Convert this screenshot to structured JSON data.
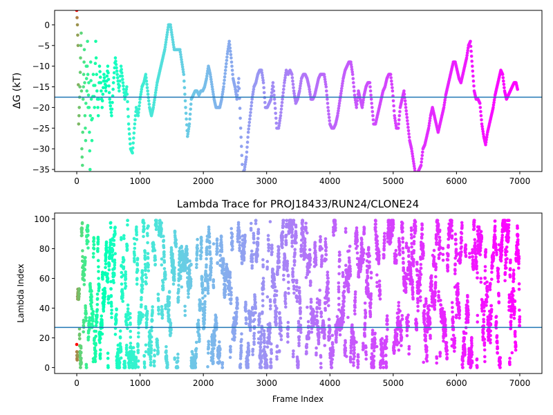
{
  "chart_data": [
    {
      "type": "scatter",
      "title": "",
      "xlabel": "",
      "ylabel": "ΔG (kT)",
      "xlim": [
        -350,
        7350
      ],
      "ylim": [
        -35.5,
        3.5
      ],
      "xticks": [
        0,
        1000,
        2000,
        3000,
        4000,
        5000,
        6000,
        7000
      ],
      "yticks": [
        0,
        -5,
        -10,
        -15,
        -20,
        -25,
        -30,
        -35
      ],
      "hline": -17.5,
      "hline_color": "#1f77b4",
      "colormap": "rainbow (frame index: red at start → violet at end)",
      "points": [
        [
          0,
          3.5
        ],
        [
          10,
          0
        ],
        [
          20,
          -5
        ],
        [
          30,
          -24
        ],
        [
          40,
          -20
        ],
        [
          50,
          -15
        ],
        [
          60,
          -8
        ],
        [
          70,
          -2
        ],
        [
          80,
          -30
        ],
        [
          90,
          -34
        ],
        [
          100,
          -18
        ],
        [
          110,
          -12
        ],
        [
          120,
          -6
        ],
        [
          130,
          -22
        ],
        [
          140,
          -28
        ],
        [
          150,
          -10
        ],
        [
          160,
          -16
        ],
        [
          170,
          -4
        ],
        [
          180,
          -20
        ],
        [
          190,
          -14
        ],
        [
          200,
          -26
        ],
        [
          210,
          -35
        ],
        [
          220,
          -9
        ],
        [
          230,
          -18
        ],
        [
          240,
          -28
        ],
        [
          260,
          -12
        ],
        [
          280,
          -20
        ],
        [
          300,
          -4
        ],
        [
          320,
          -16
        ],
        [
          340,
          -22
        ],
        [
          360,
          -10
        ],
        [
          380,
          -14
        ],
        [
          400,
          -20
        ],
        [
          430,
          -12
        ],
        [
          460,
          -16
        ],
        [
          490,
          -10
        ],
        [
          520,
          -18
        ],
        [
          550,
          -22
        ],
        [
          580,
          -14
        ],
        [
          610,
          -8
        ],
        [
          640,
          -12
        ],
        [
          670,
          -16
        ],
        [
          700,
          -10
        ],
        [
          730,
          -14
        ],
        [
          760,
          -18
        ],
        [
          790,
          -15
        ],
        [
          820,
          -24
        ],
        [
          850,
          -30
        ],
        [
          880,
          -31
        ],
        [
          910,
          -25
        ],
        [
          940,
          -20
        ],
        [
          970,
          -22
        ],
        [
          1000,
          -18
        ],
        [
          1030,
          -15
        ],
        [
          1060,
          -14
        ],
        [
          1090,
          -12
        ],
        [
          1120,
          -16
        ],
        [
          1150,
          -20
        ],
        [
          1180,
          -22
        ],
        [
          1210,
          -20
        ],
        [
          1240,
          -17
        ],
        [
          1270,
          -14
        ],
        [
          1300,
          -12
        ],
        [
          1330,
          -10
        ],
        [
          1360,
          -8
        ],
        [
          1390,
          -6
        ],
        [
          1420,
          -3
        ],
        [
          1450,
          0
        ],
        [
          1480,
          0
        ],
        [
          1510,
          -3
        ],
        [
          1540,
          -6
        ],
        [
          1570,
          -6
        ],
        [
          1600,
          -6
        ],
        [
          1630,
          -6
        ],
        [
          1660,
          -9
        ],
        [
          1690,
          -12
        ],
        [
          1720,
          -20
        ],
        [
          1750,
          -27
        ],
        [
          1780,
          -24
        ],
        [
          1810,
          -18
        ],
        [
          1840,
          -17
        ],
        [
          1870,
          -16
        ],
        [
          1900,
          -16
        ],
        [
          1930,
          -17
        ],
        [
          1960,
          -16
        ],
        [
          1990,
          -16
        ],
        [
          2020,
          -15
        ],
        [
          2050,
          -13
        ],
        [
          2080,
          -10
        ],
        [
          2110,
          -12
        ],
        [
          2140,
          -15
        ],
        [
          2170,
          -18
        ],
        [
          2200,
          -20
        ],
        [
          2230,
          -20
        ],
        [
          2260,
          -20
        ],
        [
          2290,
          -18
        ],
        [
          2320,
          -15
        ],
        [
          2350,
          -11
        ],
        [
          2380,
          -7
        ],
        [
          2410,
          -4
        ],
        [
          2440,
          -8
        ],
        [
          2470,
          -13
        ],
        [
          2500,
          -15
        ],
        [
          2530,
          -18
        ],
        [
          2560,
          -13
        ],
        [
          2590,
          -25
        ],
        [
          2620,
          -36
        ],
        [
          2650,
          -35
        ],
        [
          2680,
          -32
        ],
        [
          2710,
          -26
        ],
        [
          2740,
          -22
        ],
        [
          2770,
          -18
        ],
        [
          2800,
          -15
        ],
        [
          2830,
          -14
        ],
        [
          2860,
          -12
        ],
        [
          2890,
          -11
        ],
        [
          2920,
          -11
        ],
        [
          2950,
          -14
        ],
        [
          2980,
          -20
        ],
        [
          3010,
          -20
        ],
        [
          3040,
          -19
        ],
        [
          3070,
          -18
        ],
        [
          3100,
          -14
        ],
        [
          3130,
          -19
        ],
        [
          3160,
          -25
        ],
        [
          3190,
          -25
        ],
        [
          3220,
          -22
        ],
        [
          3250,
          -18
        ],
        [
          3280,
          -14
        ],
        [
          3310,
          -11
        ],
        [
          3340,
          -12
        ],
        [
          3370,
          -11
        ],
        [
          3400,
          -12
        ],
        [
          3430,
          -16
        ],
        [
          3460,
          -19
        ],
        [
          3490,
          -18
        ],
        [
          3520,
          -16
        ],
        [
          3550,
          -13
        ],
        [
          3580,
          -12
        ],
        [
          3610,
          -12
        ],
        [
          3640,
          -13
        ],
        [
          3670,
          -15
        ],
        [
          3700,
          -18
        ],
        [
          3730,
          -18
        ],
        [
          3760,
          -17
        ],
        [
          3790,
          -15
        ],
        [
          3820,
          -13
        ],
        [
          3850,
          -12
        ],
        [
          3880,
          -12
        ],
        [
          3910,
          -12
        ],
        [
          3940,
          -15
        ],
        [
          3970,
          -20
        ],
        [
          4000,
          -24
        ],
        [
          4030,
          -25
        ],
        [
          4060,
          -25
        ],
        [
          4090,
          -24
        ],
        [
          4120,
          -22
        ],
        [
          4150,
          -19
        ],
        [
          4180,
          -16
        ],
        [
          4210,
          -13
        ],
        [
          4240,
          -11
        ],
        [
          4270,
          -10
        ],
        [
          4300,
          -9
        ],
        [
          4330,
          -9
        ],
        [
          4360,
          -12
        ],
        [
          4390,
          -17
        ],
        [
          4420,
          -20
        ],
        [
          4450,
          -16
        ],
        [
          4480,
          -18
        ],
        [
          4510,
          -20
        ],
        [
          4540,
          -17
        ],
        [
          4570,
          -15
        ],
        [
          4600,
          -14
        ],
        [
          4630,
          -14
        ],
        [
          4660,
          -19
        ],
        [
          4690,
          -24
        ],
        [
          4720,
          -24
        ],
        [
          4750,
          -22
        ],
        [
          4780,
          -20
        ],
        [
          4810,
          -18
        ],
        [
          4840,
          -16
        ],
        [
          4870,
          -15
        ],
        [
          4900,
          -13
        ],
        [
          4930,
          -12
        ],
        [
          4960,
          -12
        ],
        [
          4990,
          -16
        ],
        [
          5020,
          -22
        ],
        [
          5050,
          -25
        ],
        [
          5080,
          -25
        ],
        [
          5110,
          -20
        ],
        [
          5140,
          -18
        ],
        [
          5170,
          -16
        ],
        [
          5200,
          -20
        ],
        [
          5230,
          -24
        ],
        [
          5260,
          -28
        ],
        [
          5290,
          -30
        ],
        [
          5320,
          -33
        ],
        [
          5350,
          -36
        ],
        [
          5380,
          -36
        ],
        [
          5410,
          -35
        ],
        [
          5440,
          -34
        ],
        [
          5470,
          -30
        ],
        [
          5500,
          -29
        ],
        [
          5530,
          -27
        ],
        [
          5560,
          -25
        ],
        [
          5590,
          -22
        ],
        [
          5620,
          -20
        ],
        [
          5650,
          -22
        ],
        [
          5680,
          -24
        ],
        [
          5710,
          -26
        ],
        [
          5740,
          -24
        ],
        [
          5770,
          -22
        ],
        [
          5800,
          -20
        ],
        [
          5830,
          -17
        ],
        [
          5860,
          -15
        ],
        [
          5890,
          -13
        ],
        [
          5920,
          -11
        ],
        [
          5950,
          -9
        ],
        [
          5980,
          -9
        ],
        [
          6010,
          -11
        ],
        [
          6040,
          -13
        ],
        [
          6070,
          -14
        ],
        [
          6100,
          -12
        ],
        [
          6130,
          -10
        ],
        [
          6160,
          -8
        ],
        [
          6190,
          -5
        ],
        [
          6220,
          -4
        ],
        [
          6250,
          -10
        ],
        [
          6280,
          -16
        ],
        [
          6310,
          -18
        ],
        [
          6340,
          -18
        ],
        [
          6370,
          -19
        ],
        [
          6400,
          -24
        ],
        [
          6430,
          -27
        ],
        [
          6460,
          -29
        ],
        [
          6490,
          -26
        ],
        [
          6520,
          -24
        ],
        [
          6550,
          -22
        ],
        [
          6580,
          -20
        ],
        [
          6610,
          -17
        ],
        [
          6640,
          -15
        ],
        [
          6670,
          -13
        ],
        [
          6700,
          -11
        ],
        [
          6730,
          -12
        ],
        [
          6760,
          -16
        ],
        [
          6790,
          -18
        ],
        [
          6820,
          -17
        ],
        [
          6850,
          -16
        ],
        [
          6880,
          -15
        ],
        [
          6910,
          -14
        ],
        [
          6940,
          -14
        ],
        [
          6970,
          -16
        ]
      ]
    },
    {
      "type": "scatter",
      "title": "Lambda Trace for PROJ18433/RUN24/CLONE24",
      "xlabel": "Frame Index",
      "ylabel": "Lambda Index",
      "xlim": [
        -350,
        7350
      ],
      "ylim": [
        -4,
        104
      ],
      "xticks": [
        0,
        1000,
        2000,
        3000,
        4000,
        5000,
        6000,
        7000
      ],
      "yticks": [
        0,
        20,
        40,
        60,
        80,
        100
      ],
      "hline": 27,
      "hline_color": "#1f77b4",
      "colormap": "rainbow (frame index: red at start → violet at end)",
      "n_points": 7000,
      "y_range": [
        0,
        99
      ]
    }
  ]
}
